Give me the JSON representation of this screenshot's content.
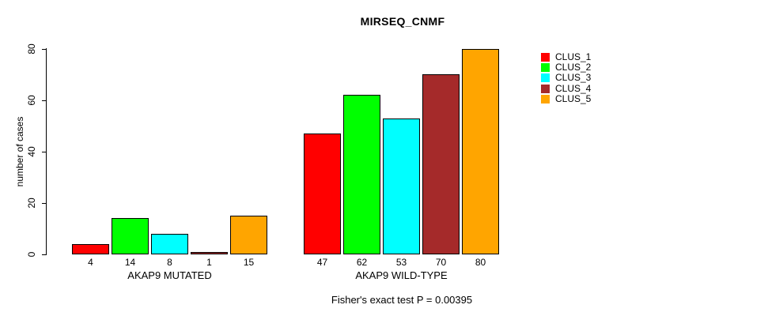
{
  "chart_data": {
    "type": "bar",
    "title": "MIRSEQ_CNMF",
    "xlabel": "",
    "ylabel": "number of cases",
    "ylim": [
      0,
      80
    ],
    "yticks": [
      0,
      20,
      40,
      60,
      80
    ],
    "grid": false,
    "bar_borders": "#000000",
    "background": "#ffffff",
    "legend_position": "right",
    "categories": [
      "AKAP9 MUTATED",
      "AKAP9 WILD-TYPE"
    ],
    "series": [
      {
        "name": "CLUS_1",
        "color": "#ff0000",
        "values": [
          4,
          47
        ]
      },
      {
        "name": "CLUS_2",
        "color": "#00ff00",
        "values": [
          14,
          62
        ]
      },
      {
        "name": "CLUS_3",
        "color": "#00ffff",
        "values": [
          8,
          53
        ]
      },
      {
        "name": "CLUS_4",
        "color": "#a52a2a",
        "values": [
          1,
          70
        ]
      },
      {
        "name": "CLUS_5",
        "color": "#ffa500",
        "values": [
          15,
          80
        ]
      }
    ],
    "value_labels_shown": true,
    "caption": "Fisher's exact test P = 0.00395"
  }
}
